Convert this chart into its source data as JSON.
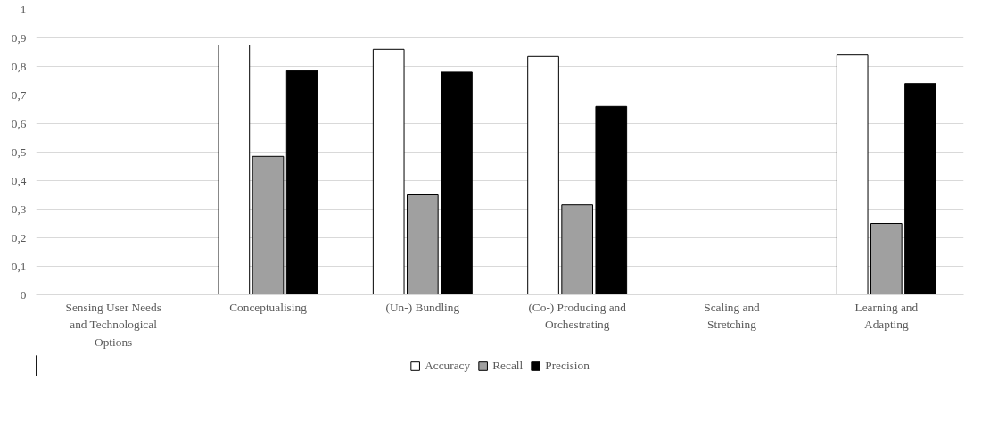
{
  "chart_data": {
    "type": "bar",
    "categories": [
      "Sensing User Needs and Technological Options",
      "Conceptualising",
      "(Un-) Bundling",
      "(Co-) Producing and Orchestrating",
      "Scaling and Stretching",
      "Learning and Adapting"
    ],
    "series": [
      {
        "name": "Accuracy",
        "color": "#ffffff",
        "values": [
          null,
          0.875,
          0.86,
          0.835,
          null,
          0.84
        ]
      },
      {
        "name": "Recall",
        "color": "#a0a0a0",
        "values": [
          null,
          0.485,
          0.35,
          0.315,
          null,
          0.25
        ]
      },
      {
        "name": "Precision",
        "color": "#000000",
        "values": [
          null,
          0.785,
          0.78,
          0.66,
          null,
          0.74
        ]
      }
    ],
    "ylim": [
      0,
      1
    ],
    "yticks": [
      0,
      {
        "value": 0.1,
        "label": "0,1"
      },
      {
        "value": 0.2,
        "label": "0,2"
      },
      {
        "value": 0.3,
        "label": "0,3"
      },
      {
        "value": 0.4,
        "label": "0,4"
      },
      {
        "value": 0.5,
        "label": "0,5"
      },
      {
        "value": 0.6,
        "label": "0,6"
      },
      {
        "value": 0.7,
        "label": "0,7"
      },
      {
        "value": 0.8,
        "label": "0,8"
      },
      {
        "value": 0.9,
        "label": "0,9"
      },
      1
    ],
    "grid": "y",
    "legend": "bottom"
  }
}
